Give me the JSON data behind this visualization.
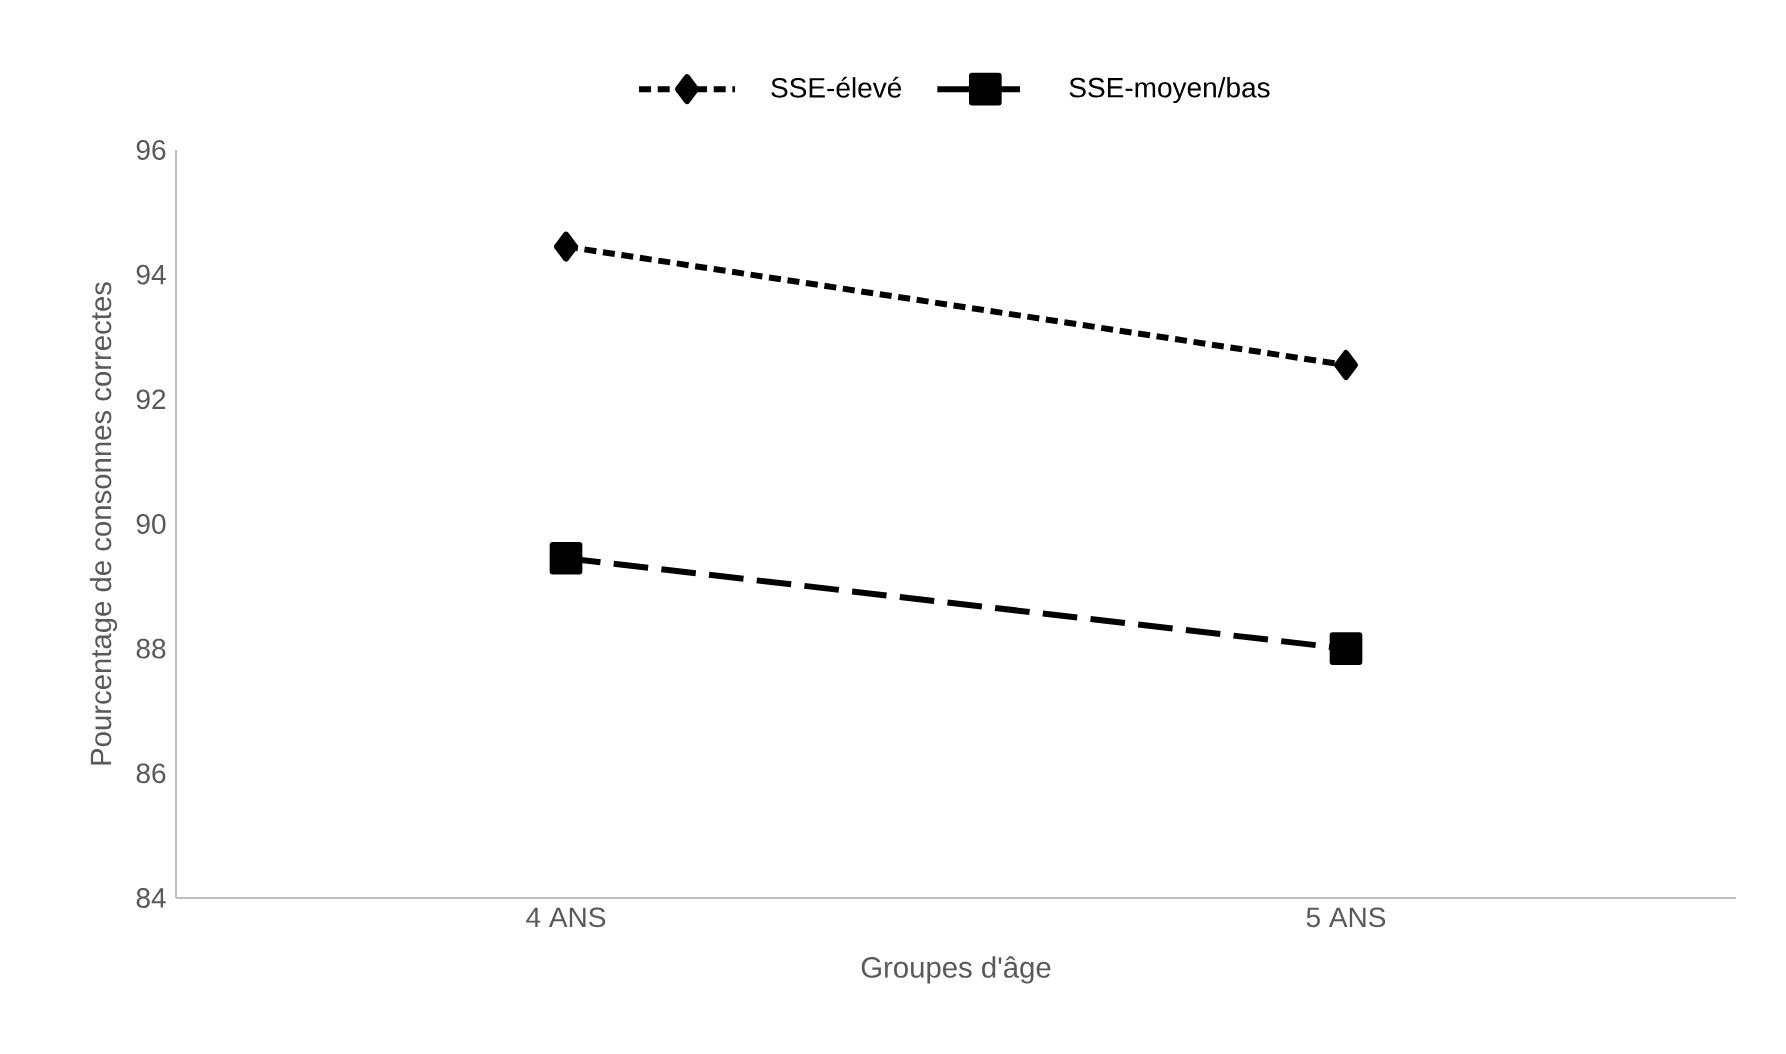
{
  "chart_data": {
    "type": "line",
    "xlabel": "Groupes d'âge",
    "ylabel": "Pourcentage de consonnes correctes",
    "categories": [
      "4 ANS",
      "5 ANS"
    ],
    "series": [
      {
        "name": "SSE-élevé",
        "color": "#000000",
        "values": [
          94.45,
          92.55
        ],
        "marker": "diamond",
        "line_style": "dotted"
      },
      {
        "name": "SSE-moyen/bas",
        "color": "#000000",
        "values": [
          89.45,
          88.0
        ],
        "marker": "square",
        "line_style": "dashed"
      }
    ],
    "ylim": [
      84,
      96
    ],
    "yticks": [
      84,
      86,
      88,
      90,
      92,
      94,
      96
    ],
    "grid": false,
    "legend": "top"
  }
}
